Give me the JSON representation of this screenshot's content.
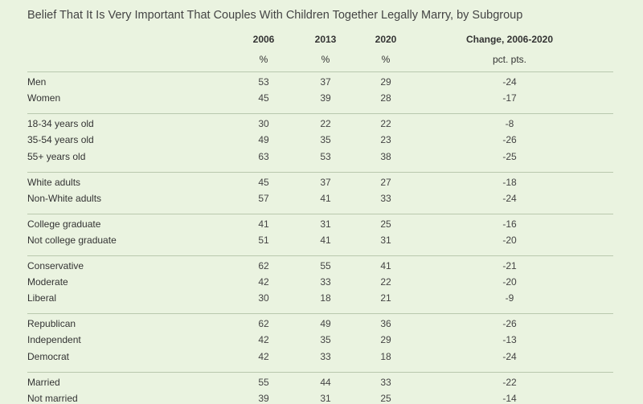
{
  "title": "Belief That It Is Very Important That Couples With Children Together Legally Marry, by Subgroup",
  "columns": [
    {
      "header": "2006",
      "unit": "%"
    },
    {
      "header": "2013",
      "unit": "%"
    },
    {
      "header": "2020",
      "unit": "%"
    },
    {
      "header": "Change, 2006-2020",
      "unit": "pct. pts."
    }
  ],
  "chart_data": {
    "type": "table",
    "title": "Belief That It Is Very Important That Couples With Children Together Legally Marry, by Subgroup",
    "columns": [
      "2006",
      "2013",
      "2020",
      "Change, 2006-2020"
    ],
    "units": [
      "%",
      "%",
      "%",
      "pct. pts."
    ],
    "groups": [
      {
        "rows": [
          {
            "label": "Men",
            "values": [
              "53",
              "37",
              "29",
              "-24"
            ]
          },
          {
            "label": "Women",
            "values": [
              "45",
              "39",
              "28",
              "-17"
            ]
          }
        ]
      },
      {
        "rows": [
          {
            "label": "18-34 years old",
            "values": [
              "30",
              "22",
              "22",
              "-8"
            ]
          },
          {
            "label": "35-54 years old",
            "values": [
              "49",
              "35",
              "23",
              "-26"
            ]
          },
          {
            "label": "55+ years old",
            "values": [
              "63",
              "53",
              "38",
              "-25"
            ]
          }
        ]
      },
      {
        "rows": [
          {
            "label": "White adults",
            "values": [
              "45",
              "37",
              "27",
              "-18"
            ]
          },
          {
            "label": "Non-White adults",
            "values": [
              "57",
              "41",
              "33",
              "-24"
            ]
          }
        ]
      },
      {
        "rows": [
          {
            "label": "College graduate",
            "values": [
              "41",
              "31",
              "25",
              "-16"
            ]
          },
          {
            "label": "Not college graduate",
            "values": [
              "51",
              "41",
              "31",
              "-20"
            ]
          }
        ]
      },
      {
        "rows": [
          {
            "label": "Conservative",
            "values": [
              "62",
              "55",
              "41",
              "-21"
            ]
          },
          {
            "label": "Moderate",
            "values": [
              "42",
              "33",
              "22",
              "-20"
            ]
          },
          {
            "label": "Liberal",
            "values": [
              "30",
              "18",
              "21",
              "-9"
            ]
          }
        ]
      },
      {
        "rows": [
          {
            "label": "Republican",
            "values": [
              "62",
              "49",
              "36",
              "-26"
            ]
          },
          {
            "label": "Independent",
            "values": [
              "42",
              "35",
              "29",
              "-13"
            ]
          },
          {
            "label": "Democrat",
            "values": [
              "42",
              "33",
              "18",
              "-24"
            ]
          }
        ]
      },
      {
        "rows": [
          {
            "label": "Married",
            "values": [
              "55",
              "44",
              "33",
              "-22"
            ]
          },
          {
            "label": "Not married",
            "values": [
              "39",
              "31",
              "25",
              "-14"
            ]
          }
        ]
      }
    ]
  }
}
